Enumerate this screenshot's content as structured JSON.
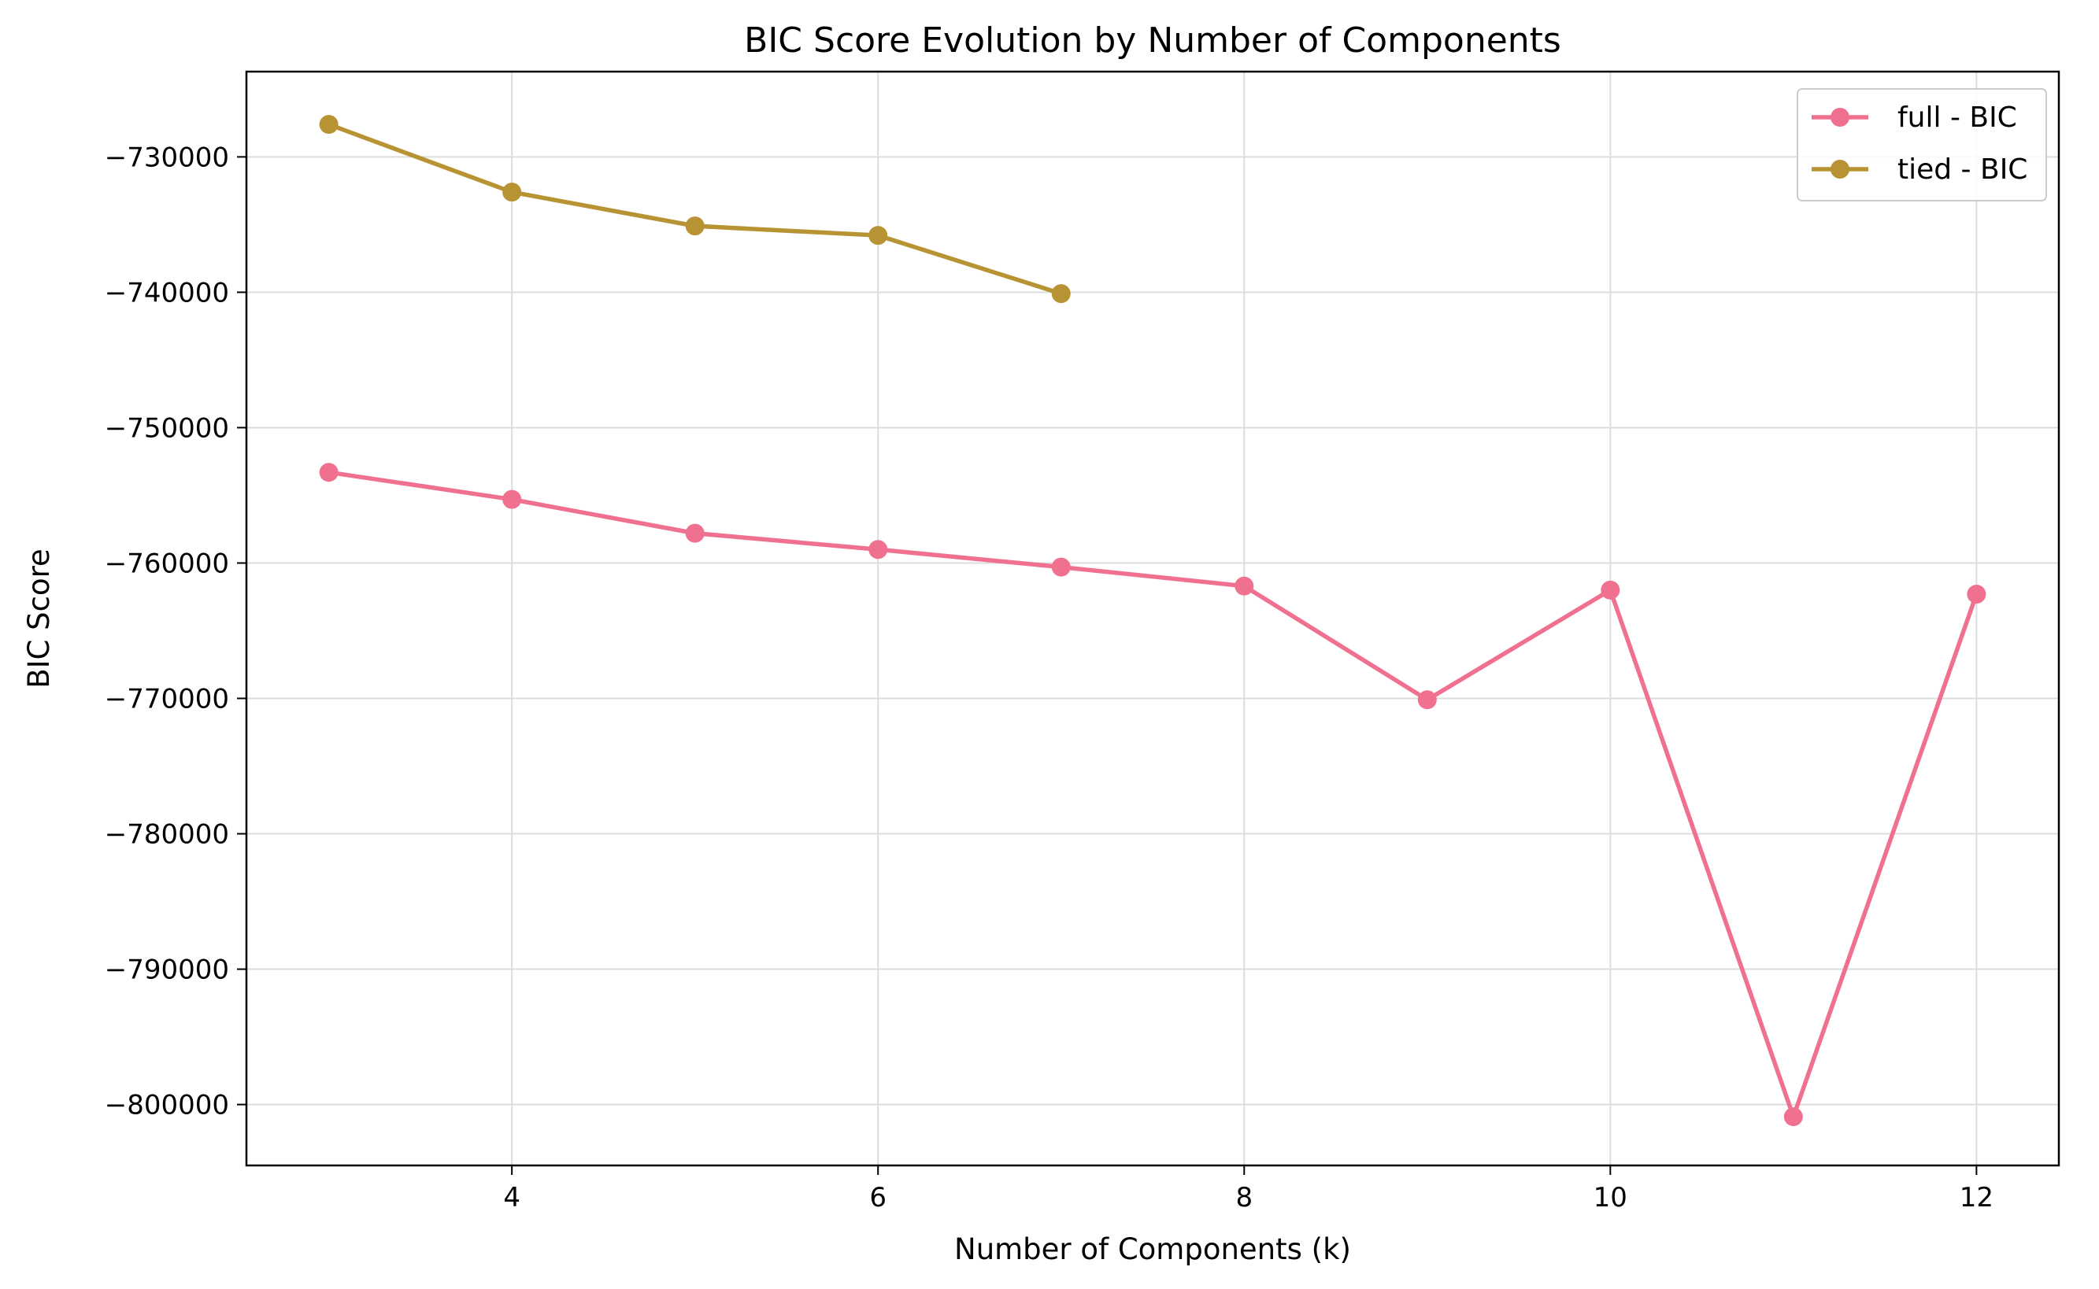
{
  "chart_data": {
    "type": "line",
    "title": "BIC Score Evolution by Number of Components",
    "xlabel": "Number of Components (k)",
    "ylabel": "BIC Score",
    "xlim": [
      2.55,
      12.45
    ],
    "ylim": [
      -804500,
      -723700
    ],
    "x_ticks": [
      4,
      6,
      8,
      10,
      12
    ],
    "y_ticks": [
      -730000,
      -740000,
      -750000,
      -760000,
      -770000,
      -780000,
      -790000,
      -800000
    ],
    "x_tick_labels": [
      "4",
      "6",
      "8",
      "10",
      "12"
    ],
    "y_tick_labels": [
      "−730000",
      "−740000",
      "−750000",
      "−760000",
      "−770000",
      "−780000",
      "−790000",
      "−800000"
    ],
    "grid": true,
    "legend_position": "top-right",
    "series": [
      {
        "name": "full - BIC",
        "color": "#f07090",
        "marker": "circle",
        "x": [
          3,
          4,
          5,
          6,
          7,
          8,
          9,
          10,
          11,
          12
        ],
        "y": [
          -753300,
          -755300,
          -757800,
          -759000,
          -760300,
          -761700,
          -770100,
          -762000,
          -800900,
          -762300
        ]
      },
      {
        "name": "tied - BIC",
        "color": "#b89333",
        "marker": "circle",
        "x": [
          3,
          4,
          5,
          6,
          7
        ],
        "y": [
          -727600,
          -732600,
          -735100,
          -735800,
          -740100
        ]
      }
    ]
  }
}
